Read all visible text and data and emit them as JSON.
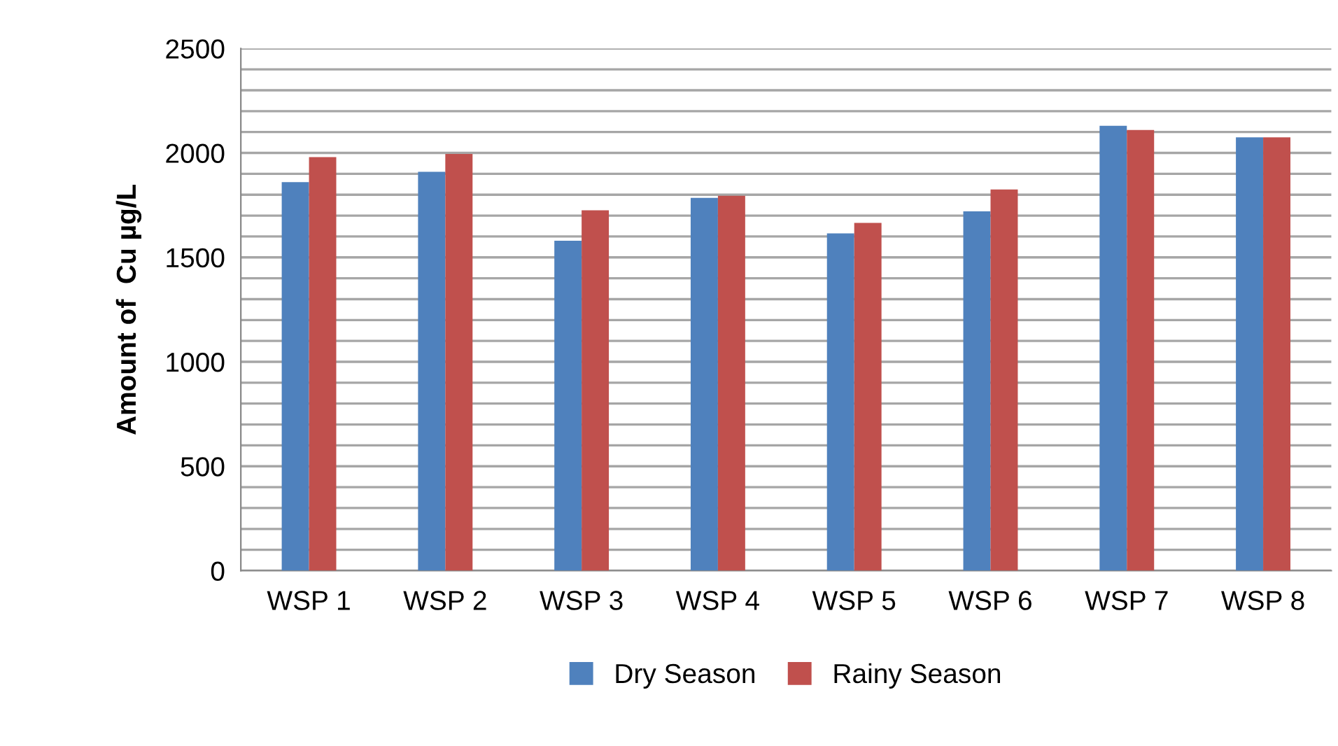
{
  "chart_data": {
    "type": "bar",
    "ylabel": "Amount of  Cu µg/L",
    "categories": [
      "WSP 1",
      "WSP 2",
      "WSP 3",
      "WSP 4",
      "WSP 5",
      "WSP 6",
      "WSP 7",
      "WSP 8"
    ],
    "series": [
      {
        "name": "Dry Season",
        "color": "#4f81bd",
        "values": [
          1860,
          1910,
          1580,
          1785,
          1615,
          1720,
          2130,
          2075
        ]
      },
      {
        "name": "Rainy Season",
        "color": "#c0504d",
        "values": [
          1980,
          1995,
          1725,
          1795,
          1665,
          1825,
          2110,
          2075
        ]
      }
    ],
    "ylim": [
      0,
      2500
    ],
    "yticks": [
      0,
      {
        "value": 100,
        "label": null
      },
      {
        "value": 200,
        "label": null
      },
      {
        "value": 300,
        "label": null
      },
      {
        "value": 400,
        "label": null
      },
      500,
      {
        "value": 600,
        "label": null
      },
      {
        "value": 700,
        "label": null
      },
      {
        "value": 800,
        "label": null
      },
      {
        "value": 900,
        "label": null
      },
      1000,
      {
        "value": 1100,
        "label": null
      },
      {
        "value": 1200,
        "label": null
      },
      {
        "value": 1300,
        "label": null
      },
      {
        "value": 1400,
        "label": null
      },
      1500,
      {
        "value": 1600,
        "label": null
      },
      {
        "value": 1700,
        "label": null
      },
      {
        "value": 1800,
        "label": null
      },
      {
        "value": 1900,
        "label": null
      },
      2000,
      {
        "value": 2100,
        "label": null
      },
      {
        "value": 2200,
        "label": null
      },
      {
        "value": 2300,
        "label": null
      },
      {
        "value": 2400,
        "label": null
      },
      2500
    ],
    "grid": "y",
    "legend": "bottom"
  }
}
